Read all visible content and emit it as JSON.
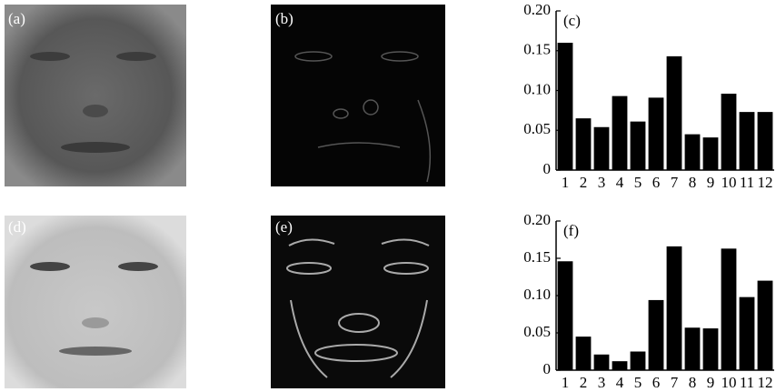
{
  "panels": [
    "(a)",
    "(b)",
    "(d)",
    "(e)"
  ],
  "chart_data": [
    {
      "type": "bar",
      "title": "(c)",
      "categories": [
        "1",
        "2",
        "3",
        "4",
        "5",
        "6",
        "7",
        "8",
        "9",
        "10",
        "11",
        "12"
      ],
      "values": [
        0.16,
        0.065,
        0.054,
        0.093,
        0.061,
        0.091,
        0.143,
        0.045,
        0.041,
        0.096,
        0.073,
        0.073
      ],
      "color": "#000000",
      "ylim": [
        0,
        0.2
      ],
      "yticks": [
        0,
        0.05,
        {
          "value": 0.1,
          "label": "0.10"
        },
        0.15,
        {
          "value": 0.2,
          "label": "0.20"
        }
      ]
    },
    {
      "type": "bar",
      "title": "(f)",
      "categories": [
        "1",
        "2",
        "3",
        "4",
        "5",
        "6",
        "7",
        "8",
        "9",
        "10",
        "11",
        "12"
      ],
      "values": [
        0.146,
        0.045,
        0.021,
        0.012,
        0.025,
        0.094,
        0.166,
        0.057,
        0.056,
        0.163,
        0.098,
        0.12
      ],
      "color": "#000000",
      "ylim": [
        0,
        0.2
      ],
      "yticks": [
        0,
        0.05,
        {
          "value": 0.1,
          "label": "0.10"
        },
        0.15,
        {
          "value": 0.2,
          "label": "0.20"
        }
      ]
    }
  ]
}
